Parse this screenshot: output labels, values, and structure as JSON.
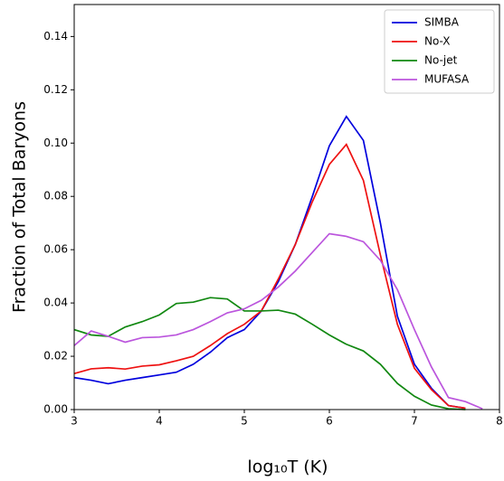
{
  "chart_data": {
    "type": "line",
    "xlabel": "log₁₀T (K)",
    "ylabel": "Fraction of Total Baryons",
    "x": [
      3,
      3.2,
      3.4,
      3.6,
      3.8,
      4,
      4.2,
      4.4,
      4.6,
      4.8,
      5,
      5.2,
      5.4,
      5.6,
      5.8,
      6,
      6.2,
      6.4,
      6.6,
      6.8,
      7,
      7.2,
      7.4,
      7.6,
      7.8
    ],
    "series": [
      {
        "name": "SIMBA",
        "color": "#0000dd",
        "values": [
          0.012,
          0.011,
          0.0097,
          0.011,
          0.012,
          0.013,
          0.014,
          0.017,
          0.0215,
          0.027,
          0.03,
          0.037,
          0.048,
          0.062,
          0.08,
          0.099,
          0.11,
          0.101,
          0.07,
          0.035,
          0.017,
          0.008,
          0.0015,
          0.0005,
          null
        ]
      },
      {
        "name": "No-X",
        "color": "#ee1111",
        "values": [
          0.0135,
          0.0153,
          0.0157,
          0.0152,
          0.0163,
          0.0168,
          0.0183,
          0.02,
          0.024,
          0.0285,
          0.032,
          0.037,
          0.049,
          0.062,
          0.078,
          0.092,
          0.0995,
          0.086,
          0.058,
          0.032,
          0.0155,
          0.0075,
          0.0015,
          0.0005,
          null
        ]
      },
      {
        "name": "No-jet",
        "color": "#118811",
        "values": [
          0.03,
          0.028,
          0.0275,
          0.031,
          0.033,
          0.0355,
          0.0398,
          0.0403,
          0.042,
          0.0415,
          0.037,
          0.037,
          0.0373,
          0.0358,
          0.032,
          0.028,
          0.0245,
          0.022,
          0.017,
          0.0098,
          0.005,
          0.0017,
          0.0003,
          0,
          null
        ]
      },
      {
        "name": "MUFASA",
        "color": "#bb55dd",
        "values": [
          0.024,
          0.0295,
          0.0275,
          0.0253,
          0.027,
          0.0272,
          0.028,
          0.03,
          0.033,
          0.0363,
          0.0378,
          0.041,
          0.046,
          0.052,
          0.059,
          0.066,
          0.065,
          0.063,
          0.056,
          0.045,
          0.03,
          0.016,
          0.0045,
          0.003,
          0.0003
        ]
      }
    ],
    "xlim": [
      3,
      8
    ],
    "xticks": [
      3,
      4,
      5,
      6,
      7,
      8
    ],
    "ylim": [
      0,
      0.152
    ],
    "yticks": [
      {
        "value": 0,
        "label": "0.00"
      },
      {
        "value": 0.02,
        "label": "0.02"
      },
      {
        "value": 0.04,
        "label": "0.04"
      },
      {
        "value": 0.06,
        "label": "0.06"
      },
      {
        "value": 0.08,
        "label": "0.08"
      },
      {
        "value": 0.1,
        "label": "0.10"
      },
      {
        "value": 0.12,
        "label": "0.12"
      },
      {
        "value": 0.14,
        "label": "0.14"
      }
    ],
    "legend": "upper-right"
  }
}
